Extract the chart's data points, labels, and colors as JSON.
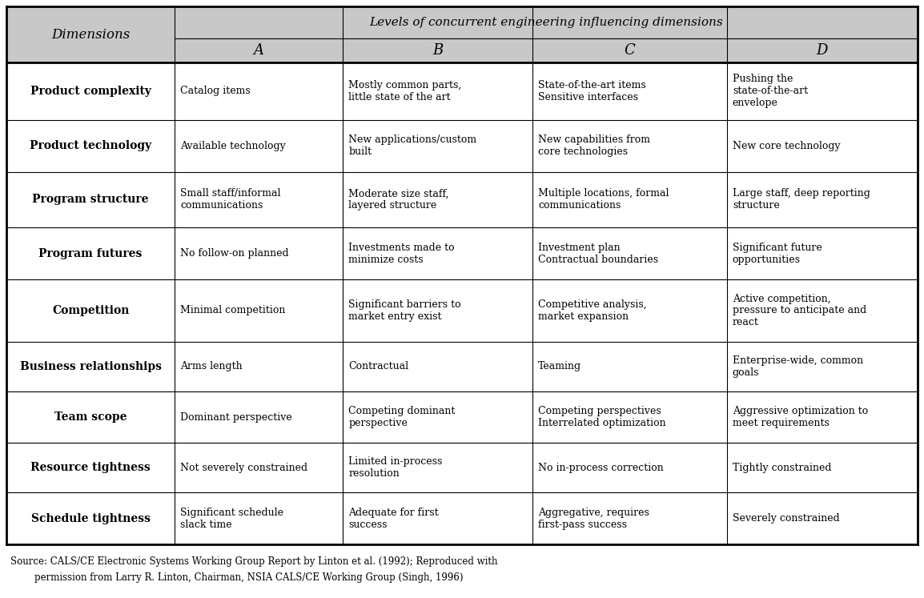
{
  "title": "Levels of concurrent engineering influencing dimensions",
  "header_bg": "#c8c8c8",
  "dimensions_label": "Dimensions",
  "col_labels": [
    "A",
    "B",
    "C",
    "D"
  ],
  "title_fontsize": 11,
  "header_fontsize": 12,
  "row_label_fontsize": 10,
  "cell_fontsize": 9,
  "footnote_fontsize": 8.5,
  "rows": [
    {
      "label": "Product complexity",
      "cells": [
        "Catalog items",
        "Mostly common parts,\nlittle state of the art",
        "State-of-the-art items\nSensitive interfaces",
        "Pushing the\nstate-of-the-art\nenvelope"
      ]
    },
    {
      "label": "Product technology",
      "cells": [
        "Available technology",
        "New applications/custom\nbuilt",
        "New capabilities from\ncore technologies",
        "New core technology"
      ]
    },
    {
      "label": "Program structure",
      "cells": [
        "Small staff/informal\ncommunications",
        "Moderate size staff,\nlayered structure",
        "Multiple locations, formal\ncommunications",
        "Large staff, deep reporting\nstructure"
      ]
    },
    {
      "label": "Program futures",
      "cells": [
        "No follow-on planned",
        "Investments made to\nminimize costs",
        "Investment plan\nContractual boundaries",
        "Significant future\nopportunities"
      ]
    },
    {
      "label": "Competition",
      "cells": [
        "Minimal competition",
        "Significant barriers to\nmarket entry exist",
        "Competitive analysis,\nmarket expansion",
        "Active competition,\npressure to anticipate and\nreact"
      ]
    },
    {
      "label": "Business relationships",
      "cells": [
        "Arms length",
        "Contractual",
        "Teaming",
        "Enterprise-wide, common\ngoals"
      ]
    },
    {
      "label": "Team scope",
      "cells": [
        "Dominant perspective",
        "Competing dominant\nperspective",
        "Competing perspectives\nInterrelated optimization",
        "Aggressive optimization to\nmeet requirements"
      ]
    },
    {
      "label": "Resource tightness",
      "cells": [
        "Not severely constrained",
        "Limited in-process\nresolution",
        "No in-process correction",
        "Tightly constrained"
      ]
    },
    {
      "label": "Schedule tightness",
      "cells": [
        "Significant schedule\nslack time",
        "Adequate for first\nsuccess",
        "Aggregative, requires\nfirst-pass success",
        "Severely constrained"
      ]
    }
  ],
  "footnote_line1": "Source: CALS/CE Electronic Systems Working Group Report by Linton et al. (1992); Reproduced with",
  "footnote_line2": "        permission from Larry R. Linton, Chairman, NSIA CALS/CE Working Group (Singh, 1996)"
}
